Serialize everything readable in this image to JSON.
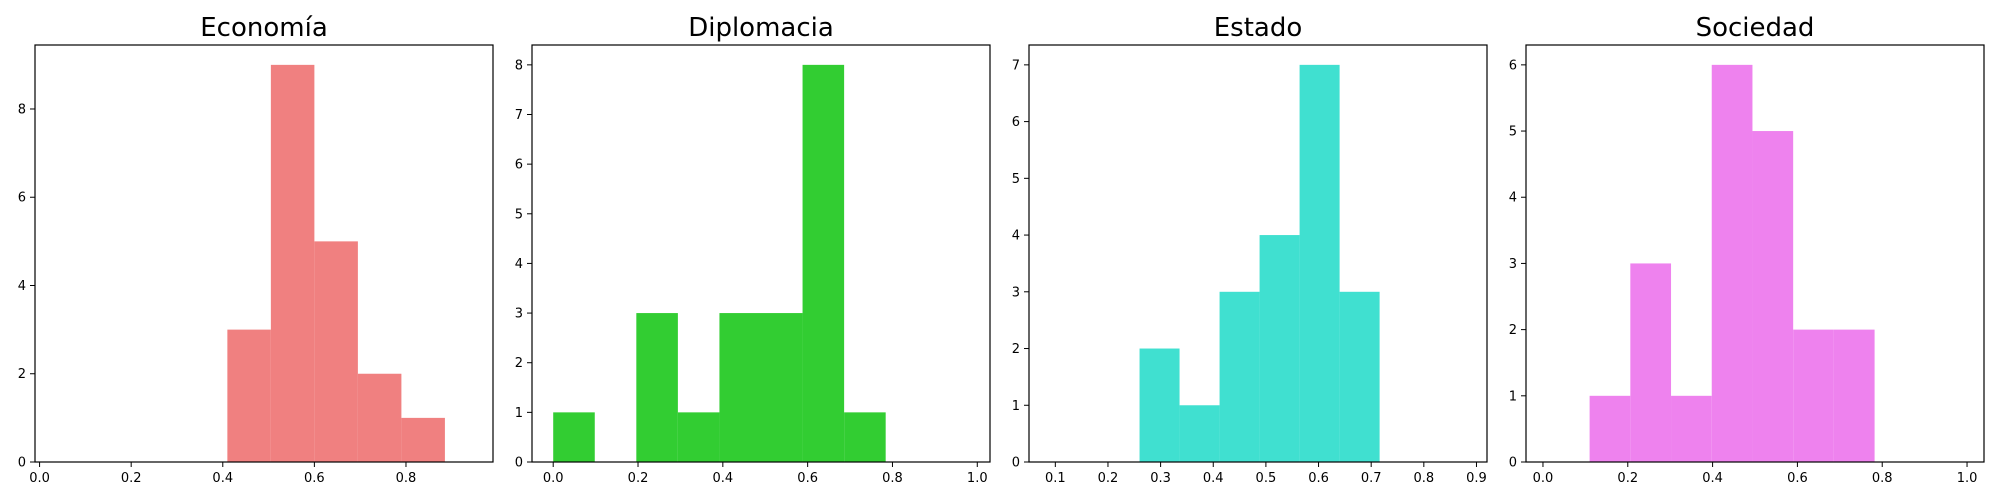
{
  "chart_data": [
    {
      "type": "bar",
      "title": "Economía",
      "color": "#F08080",
      "xlim": [
        -0.01,
        0.99
      ],
      "ylim": [
        0,
        9.45
      ],
      "xticks": [
        0.0,
        0.2,
        0.4,
        0.6,
        0.8
      ],
      "xtick_labels": [
        "0.0",
        "0.2",
        "0.4",
        "0.6",
        "0.8"
      ],
      "yticks": [
        0,
        2,
        4,
        6,
        8
      ],
      "ytick_labels": [
        "0",
        "2",
        "4",
        "6",
        "8"
      ],
      "bins": [
        [
          0.41,
          0.505
        ],
        [
          0.505,
          0.6
        ],
        [
          0.6,
          0.695
        ],
        [
          0.695,
          0.79
        ],
        [
          0.79,
          0.885
        ]
      ],
      "values": [
        3,
        9,
        5,
        2,
        1
      ]
    },
    {
      "type": "bar",
      "title": "Diplomacia",
      "color": "#32CD32",
      "xlim": [
        -0.05,
        1.03
      ],
      "ylim": [
        0,
        8.4
      ],
      "xticks": [
        0.0,
        0.2,
        0.4,
        0.6,
        0.8,
        1.0
      ],
      "xtick_labels": [
        "0.0",
        "0.2",
        "0.4",
        "0.6",
        "0.8",
        "1.0"
      ],
      "yticks": [
        0,
        1,
        2,
        3,
        4,
        5,
        6,
        7,
        8
      ],
      "ytick_labels": [
        "0",
        "1",
        "2",
        "3",
        "4",
        "5",
        "6",
        "7",
        "8"
      ],
      "bins": [
        [
          0.0,
          0.098
        ],
        [
          0.098,
          0.196
        ],
        [
          0.196,
          0.294
        ],
        [
          0.294,
          0.392
        ],
        [
          0.392,
          0.49
        ],
        [
          0.49,
          0.588
        ],
        [
          0.588,
          0.686
        ],
        [
          0.686,
          0.784
        ]
      ],
      "values": [
        1,
        0,
        3,
        1,
        3,
        3,
        8,
        1
      ]
    },
    {
      "type": "bar",
      "title": "Estado",
      "color": "#40E0D0",
      "xlim": [
        0.05,
        0.92
      ],
      "ylim": [
        0,
        7.35
      ],
      "xticks": [
        0.1,
        0.2,
        0.3,
        0.4,
        0.5,
        0.6,
        0.7,
        0.8,
        0.9
      ],
      "xtick_labels": [
        "0.1",
        "0.2",
        "0.3",
        "0.4",
        "0.5",
        "0.6",
        "0.7",
        "0.8",
        "0.9"
      ],
      "yticks": [
        0,
        1,
        2,
        3,
        4,
        5,
        6,
        7
      ],
      "ytick_labels": [
        "0",
        "1",
        "2",
        "3",
        "4",
        "5",
        "6",
        "7"
      ],
      "bins": [
        [
          0.26,
          0.336
        ],
        [
          0.336,
          0.412
        ],
        [
          0.412,
          0.488
        ],
        [
          0.488,
          0.564
        ],
        [
          0.564,
          0.64
        ],
        [
          0.64,
          0.716
        ]
      ],
      "values": [
        2,
        1,
        3,
        4,
        7,
        3
      ]
    },
    {
      "type": "bar",
      "title": "Sociedad",
      "color": "#EE82EE",
      "xlim": [
        -0.04,
        1.04
      ],
      "ylim": [
        0,
        6.3
      ],
      "xticks": [
        0.0,
        0.2,
        0.4,
        0.6,
        0.8,
        1.0
      ],
      "xtick_labels": [
        "0.0",
        "0.2",
        "0.4",
        "0.6",
        "0.8",
        "1.0"
      ],
      "yticks": [
        0,
        1,
        2,
        3,
        4,
        5,
        6
      ],
      "ytick_labels": [
        "0",
        "1",
        "2",
        "3",
        "4",
        "5",
        "6"
      ],
      "bins": [
        [
          0.11,
          0.206
        ],
        [
          0.206,
          0.302
        ],
        [
          0.302,
          0.398
        ],
        [
          0.398,
          0.494
        ],
        [
          0.494,
          0.59
        ],
        [
          0.59,
          0.686
        ],
        [
          0.686,
          0.782
        ]
      ],
      "values": [
        1,
        3,
        1,
        6,
        5,
        2,
        2
      ]
    }
  ]
}
